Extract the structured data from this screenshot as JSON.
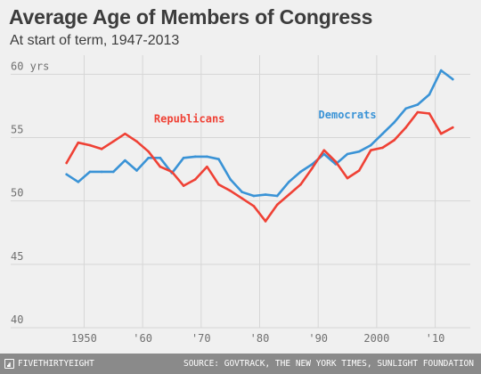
{
  "header": {
    "title": "Average Age of Members of Congress",
    "subtitle": "At start of term, 1947-2013"
  },
  "footer": {
    "brand": "FIVETHIRTYEIGHT",
    "source": "SOURCE: GOVTRACK, THE NEW YORK TIMES, SUNLIGHT FOUNDATION"
  },
  "chart_data": {
    "type": "line",
    "title": "Average Age of Members of Congress",
    "subtitle": "At start of term, 1947-2013",
    "xlabel": "",
    "ylabel": "",
    "xlim": [
      1944,
      2016
    ],
    "ylim": [
      40,
      61.5
    ],
    "y_ticks": [
      {
        "value": 60,
        "label": "60 yrs"
      },
      {
        "value": 55,
        "label": "55"
      },
      {
        "value": 50,
        "label": "50"
      },
      {
        "value": 45,
        "label": "45"
      },
      {
        "value": 40,
        "label": "40"
      }
    ],
    "x_ticks": [
      {
        "value": 1950,
        "label": "1950"
      },
      {
        "value": 1960,
        "label": "'60"
      },
      {
        "value": 1970,
        "label": "'70"
      },
      {
        "value": 1980,
        "label": "'80"
      },
      {
        "value": 1990,
        "label": "'90"
      },
      {
        "value": 2000,
        "label": "2000"
      },
      {
        "value": 2010,
        "label": "'10"
      }
    ],
    "grid": true,
    "legend": "direct labels on lines",
    "x": [
      1947,
      1949,
      1951,
      1953,
      1955,
      1957,
      1959,
      1961,
      1963,
      1965,
      1967,
      1969,
      1971,
      1973,
      1975,
      1977,
      1979,
      1981,
      1983,
      1985,
      1987,
      1989,
      1991,
      1993,
      1995,
      1997,
      1999,
      2001,
      2003,
      2005,
      2007,
      2009,
      2011,
      2013
    ],
    "series": [
      {
        "name": "Democrats",
        "color": "#3a93d6",
        "values": [
          52.1,
          51.5,
          52.3,
          52.3,
          52.3,
          53.2,
          52.4,
          53.4,
          53.4,
          52.2,
          53.4,
          53.5,
          53.5,
          53.3,
          51.7,
          50.7,
          50.4,
          50.5,
          50.4,
          51.5,
          52.3,
          52.9,
          53.7,
          52.9,
          53.7,
          53.9,
          54.4,
          55.3,
          56.2,
          57.3,
          57.6,
          58.4,
          60.3,
          59.6
        ]
      },
      {
        "name": "Republicans",
        "color": "#ef4135",
        "values": [
          53.0,
          54.6,
          54.4,
          54.1,
          54.7,
          55.3,
          54.7,
          53.9,
          52.7,
          52.3,
          51.2,
          51.7,
          52.7,
          51.3,
          50.8,
          50.2,
          49.6,
          48.4,
          49.7,
          50.5,
          51.3,
          52.6,
          54.0,
          53.1,
          51.8,
          52.4,
          54.0,
          54.2,
          54.8,
          55.8,
          57.0,
          56.9,
          55.3,
          55.8
        ]
      }
    ]
  }
}
